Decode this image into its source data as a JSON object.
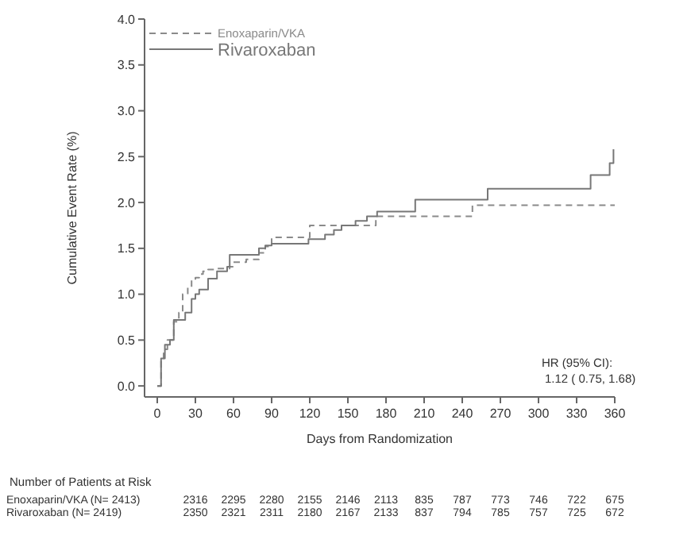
{
  "chart_data": {
    "type": "step",
    "xlabel": "Days from Randomization",
    "ylabel": "Cumulative Event Rate (%)",
    "xlim": [
      -10,
      360
    ],
    "xticks": [
      0,
      30,
      60,
      90,
      120,
      150,
      180,
      210,
      240,
      270,
      300,
      330,
      360
    ],
    "ylim": [
      -0.12,
      4.0
    ],
    "yticks": [
      {
        "value": 0,
        "label": "0.0"
      },
      0.5,
      {
        "value": 1,
        "label": "1.0"
      },
      1.5,
      {
        "value": 2,
        "label": "2.0"
      },
      2.5,
      {
        "value": 3,
        "label": "3.0"
      },
      3.5,
      {
        "value": 4,
        "label": "4.0"
      }
    ],
    "grid": false,
    "legend": "top left",
    "marker": "none",
    "series": [
      {
        "name": "Enoxaparin/VKA",
        "color": "#8a8a8a",
        "line_style": "dashed",
        "x": [
          0,
          3,
          5,
          8,
          13,
          17,
          20,
          24,
          27,
          30,
          33,
          36,
          40,
          47,
          57,
          60,
          70,
          80,
          85,
          90,
          105,
          120,
          150,
          172,
          200,
          248,
          300,
          360
        ],
        "values": [
          0,
          0.3,
          0.4,
          0.5,
          0.7,
          0.8,
          1.0,
          1.08,
          1.15,
          1.18,
          1.22,
          1.25,
          1.27,
          1.28,
          1.3,
          1.35,
          1.38,
          1.45,
          1.52,
          1.62,
          1.62,
          1.75,
          1.75,
          1.85,
          1.85,
          1.97,
          1.97,
          1.97
        ]
      },
      {
        "name": "Rivaroxaban",
        "color": "#777777",
        "line_style": "solid",
        "x": [
          0,
          3,
          6,
          10,
          13,
          18,
          22,
          27,
          30,
          33,
          40,
          47,
          55,
          57,
          80,
          85,
          90,
          119,
          132,
          139,
          145,
          156,
          165,
          173,
          203,
          260,
          341,
          356,
          359
        ],
        "values": [
          0,
          0.3,
          0.45,
          0.5,
          0.72,
          0.72,
          0.8,
          0.95,
          1.0,
          1.05,
          1.17,
          1.25,
          1.3,
          1.43,
          1.5,
          1.53,
          1.55,
          1.6,
          1.65,
          1.7,
          1.75,
          1.8,
          1.85,
          1.9,
          2.03,
          2.15,
          2.3,
          2.43,
          2.58
        ]
      }
    ],
    "annotations": [
      "HR (95% CI):",
      "1.12 ( 0.75,  1.68)",
      "Number of Patients at Risk",
      "Enoxaparin/VKA (N= 2413)",
      "2316 2295 2280 2155 2146 2113 835 787 773 746 722 675",
      "Rivaroxaban (N= 2419)",
      "2350 2321 2311 2180 2167 2133 837 794 785 757 725 672"
    ]
  }
}
